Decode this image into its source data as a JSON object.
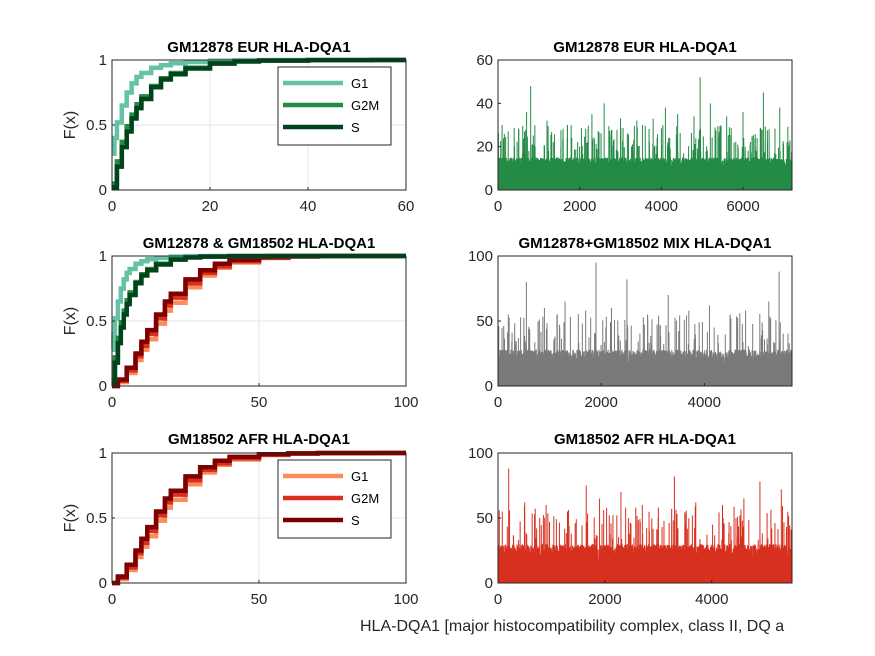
{
  "figure": {
    "footer_text": "HLA-DQA1 [major histocompatibility complex, class II, DQ a"
  },
  "chart_data": [
    {
      "id": "eur_cdf",
      "type": "line",
      "title": "GM12878 EUR HLA-DQA1",
      "xlabel": "",
      "ylabel": "F(x)",
      "xlim": [
        0,
        60
      ],
      "ylim": [
        0,
        1
      ],
      "xticks": [
        0,
        20,
        40,
        60
      ],
      "yticks": [
        0,
        0.5,
        1
      ],
      "xtick_labels": [
        "0",
        "20",
        "40",
        "60"
      ],
      "ytick_labels": [
        "0",
        "0.5",
        "1"
      ],
      "grid": true,
      "legend": "top-right",
      "series": [
        {
          "name": "G1",
          "color": "#66c2a4",
          "x": [
            0,
            0.5,
            1,
            2,
            3,
            4,
            5,
            6,
            8,
            10,
            12,
            15,
            20,
            25,
            33
          ],
          "y": [
            0.28,
            0.4,
            0.52,
            0.65,
            0.75,
            0.82,
            0.87,
            0.9,
            0.94,
            0.96,
            0.975,
            0.985,
            0.995,
            0.999,
            1.0
          ]
        },
        {
          "name": "G2M",
          "color": "#238b45",
          "x": [
            0,
            1,
            2,
            3,
            4,
            5,
            6,
            8,
            10,
            12,
            15,
            20,
            25,
            30,
            40,
            53
          ],
          "y": [
            0.05,
            0.22,
            0.37,
            0.49,
            0.58,
            0.66,
            0.72,
            0.8,
            0.86,
            0.9,
            0.94,
            0.975,
            0.99,
            0.996,
            0.999,
            1.0
          ]
        },
        {
          "name": "S",
          "color": "#00441b",
          "x": [
            0,
            1,
            2,
            3,
            4,
            5,
            6,
            8,
            10,
            12,
            15,
            20,
            25,
            30,
            40,
            53
          ],
          "y": [
            0.02,
            0.18,
            0.33,
            0.45,
            0.55,
            0.63,
            0.7,
            0.79,
            0.85,
            0.89,
            0.935,
            0.972,
            0.988,
            0.995,
            0.999,
            1.0
          ]
        }
      ]
    },
    {
      "id": "eur_bar",
      "type": "bar",
      "title": "GM12878 EUR HLA-DQA1",
      "xlim": [
        0,
        7200
      ],
      "ylim": [
        0,
        60
      ],
      "xticks": [
        0,
        2000,
        4000,
        6000
      ],
      "yticks": [
        0,
        20,
        40,
        60
      ],
      "xtick_labels": [
        "0",
        "2000",
        "4000",
        "6000"
      ],
      "ytick_labels": [
        "0",
        "20",
        "40",
        "60"
      ],
      "grid": false,
      "color": "#238b45",
      "n_points": 7200,
      "baseline_max": 15,
      "peaks": [
        {
          "x": 100,
          "y": 30
        },
        {
          "x": 250,
          "y": 27
        },
        {
          "x": 700,
          "y": 36
        },
        {
          "x": 800,
          "y": 48
        },
        {
          "x": 1200,
          "y": 32
        },
        {
          "x": 1700,
          "y": 30
        },
        {
          "x": 2300,
          "y": 35
        },
        {
          "x": 2600,
          "y": 40
        },
        {
          "x": 3000,
          "y": 33
        },
        {
          "x": 3400,
          "y": 32
        },
        {
          "x": 3800,
          "y": 33
        },
        {
          "x": 4100,
          "y": 38
        },
        {
          "x": 4400,
          "y": 35
        },
        {
          "x": 4800,
          "y": 34
        },
        {
          "x": 4950,
          "y": 52
        },
        {
          "x": 5200,
          "y": 40
        },
        {
          "x": 5600,
          "y": 34
        },
        {
          "x": 6000,
          "y": 36
        },
        {
          "x": 6500,
          "y": 45
        },
        {
          "x": 6900,
          "y": 38
        }
      ]
    },
    {
      "id": "mix_cdf",
      "type": "line",
      "title": "GM12878 & GM18502 HLA-DQA1",
      "xlabel": "",
      "ylabel": "F(x)",
      "xlim": [
        0,
        100
      ],
      "ylim": [
        0,
        1
      ],
      "xticks": [
        0,
        50,
        100
      ],
      "yticks": [
        0,
        0.5,
        1
      ],
      "xtick_labels": [
        "0",
        "50",
        "100"
      ],
      "ytick_labels": [
        "0",
        "0.5",
        "1"
      ],
      "grid": true,
      "legend": "none",
      "series": [
        {
          "name": "",
          "color": "#fc8d59",
          "x": [
            0,
            2,
            5,
            8,
            10,
            12,
            15,
            18,
            20,
            25,
            30,
            35,
            40,
            50,
            60,
            70,
            90
          ],
          "y": [
            0,
            0.03,
            0.1,
            0.2,
            0.28,
            0.36,
            0.48,
            0.58,
            0.64,
            0.76,
            0.85,
            0.91,
            0.95,
            0.985,
            0.995,
            0.999,
            1.0
          ]
        },
        {
          "name": "",
          "color": "#d7301f",
          "x": [
            0,
            2,
            5,
            8,
            10,
            12,
            15,
            18,
            20,
            25,
            30,
            35,
            40,
            50,
            60,
            70,
            90
          ],
          "y": [
            0,
            0.04,
            0.12,
            0.23,
            0.31,
            0.4,
            0.52,
            0.62,
            0.68,
            0.79,
            0.87,
            0.92,
            0.96,
            0.988,
            0.996,
            0.999,
            1.0
          ]
        },
        {
          "name": "",
          "color": "#7f0000",
          "x": [
            0,
            2,
            5,
            8,
            10,
            12,
            15,
            18,
            20,
            25,
            30,
            35,
            40,
            50,
            60,
            70
          ],
          "y": [
            0,
            0.05,
            0.14,
            0.25,
            0.34,
            0.43,
            0.55,
            0.65,
            0.71,
            0.82,
            0.89,
            0.94,
            0.97,
            0.99,
            0.997,
            1.0
          ]
        },
        {
          "name": "",
          "color": "#66c2a4",
          "x": [
            0,
            0.5,
            1,
            2,
            3,
            4,
            5,
            6,
            8,
            10,
            12,
            15,
            20,
            25,
            33
          ],
          "y": [
            0.28,
            0.4,
            0.52,
            0.65,
            0.75,
            0.82,
            0.87,
            0.9,
            0.94,
            0.96,
            0.975,
            0.985,
            0.995,
            0.999,
            1.0
          ]
        },
        {
          "name": "",
          "color": "#238b45",
          "x": [
            0,
            1,
            2,
            3,
            4,
            5,
            6,
            8,
            10,
            12,
            15,
            20,
            25,
            30,
            40,
            53
          ],
          "y": [
            0.05,
            0.22,
            0.37,
            0.49,
            0.58,
            0.66,
            0.72,
            0.8,
            0.86,
            0.9,
            0.94,
            0.975,
            0.99,
            0.996,
            0.999,
            1.0
          ]
        },
        {
          "name": "",
          "color": "#00441b",
          "x": [
            0,
            1,
            2,
            3,
            4,
            5,
            6,
            8,
            10,
            12,
            15,
            20,
            25,
            30,
            40,
            53
          ],
          "y": [
            0.02,
            0.18,
            0.33,
            0.45,
            0.55,
            0.63,
            0.7,
            0.79,
            0.85,
            0.89,
            0.935,
            0.972,
            0.988,
            0.995,
            0.999,
            1.0
          ]
        }
      ]
    },
    {
      "id": "mix_bar",
      "type": "bar",
      "title": "GM12878+GM18502 MIX HLA-DQA1",
      "xlim": [
        0,
        5700
      ],
      "ylim": [
        0,
        100
      ],
      "xticks": [
        0,
        2000,
        4000
      ],
      "yticks": [
        0,
        50,
        100
      ],
      "xtick_labels": [
        "0",
        "2000",
        "4000"
      ],
      "ytick_labels": [
        "0",
        "50",
        "100"
      ],
      "grid": false,
      "color": "#7a7a7a",
      "n_points": 5700,
      "baseline_max": 28,
      "peaks": [
        {
          "x": 200,
          "y": 55
        },
        {
          "x": 550,
          "y": 80
        },
        {
          "x": 900,
          "y": 60
        },
        {
          "x": 1300,
          "y": 65
        },
        {
          "x": 1700,
          "y": 58
        },
        {
          "x": 1900,
          "y": 95
        },
        {
          "x": 2200,
          "y": 60
        },
        {
          "x": 2500,
          "y": 82
        },
        {
          "x": 2900,
          "y": 55
        },
        {
          "x": 3300,
          "y": 70
        },
        {
          "x": 3700,
          "y": 58
        },
        {
          "x": 4100,
          "y": 62
        },
        {
          "x": 4500,
          "y": 55
        },
        {
          "x": 4800,
          "y": 58
        },
        {
          "x": 5250,
          "y": 65
        },
        {
          "x": 5450,
          "y": 88
        }
      ]
    },
    {
      "id": "afr_cdf",
      "type": "line",
      "title": "GM18502 AFR HLA-DQA1",
      "xlabel": "",
      "ylabel": "F(x)",
      "xlim": [
        0,
        100
      ],
      "ylim": [
        0,
        1
      ],
      "xticks": [
        0,
        50,
        100
      ],
      "yticks": [
        0,
        0.5,
        1
      ],
      "xtick_labels": [
        "0",
        "50",
        "100"
      ],
      "ytick_labels": [
        "0",
        "0.5",
        "1"
      ],
      "grid": true,
      "legend": "top-right",
      "series": [
        {
          "name": "G1",
          "color": "#fc8d59",
          "x": [
            0,
            2,
            5,
            8,
            10,
            12,
            15,
            18,
            20,
            25,
            30,
            35,
            40,
            50,
            60,
            70,
            90
          ],
          "y": [
            0,
            0.03,
            0.1,
            0.2,
            0.28,
            0.36,
            0.48,
            0.58,
            0.64,
            0.76,
            0.85,
            0.91,
            0.95,
            0.985,
            0.995,
            0.999,
            1.0
          ]
        },
        {
          "name": "G2M",
          "color": "#d7301f",
          "x": [
            0,
            2,
            5,
            8,
            10,
            12,
            15,
            18,
            20,
            25,
            30,
            35,
            40,
            50,
            60,
            70,
            90
          ],
          "y": [
            0,
            0.04,
            0.12,
            0.23,
            0.31,
            0.4,
            0.52,
            0.62,
            0.68,
            0.79,
            0.87,
            0.92,
            0.96,
            0.988,
            0.996,
            0.999,
            1.0
          ]
        },
        {
          "name": "S",
          "color": "#7f0000",
          "x": [
            0,
            2,
            5,
            8,
            10,
            12,
            15,
            18,
            20,
            25,
            30,
            35,
            40,
            50,
            60,
            70
          ],
          "y": [
            0,
            0.05,
            0.14,
            0.25,
            0.34,
            0.43,
            0.55,
            0.65,
            0.71,
            0.82,
            0.89,
            0.94,
            0.97,
            0.99,
            0.997,
            1.0
          ]
        }
      ]
    },
    {
      "id": "afr_bar",
      "type": "bar",
      "title": "GM18502 AFR HLA-DQA1",
      "xlim": [
        0,
        5500
      ],
      "ylim": [
        0,
        100
      ],
      "xticks": [
        0,
        2000,
        4000
      ],
      "yticks": [
        0,
        50,
        100
      ],
      "xtick_labels": [
        "0",
        "2000",
        "4000"
      ],
      "ytick_labels": [
        "0",
        "50",
        "100"
      ],
      "grid": false,
      "color": "#d7301f",
      "n_points": 5500,
      "baseline_max": 30,
      "peaks": [
        {
          "x": 80,
          "y": 55
        },
        {
          "x": 200,
          "y": 88
        },
        {
          "x": 500,
          "y": 62
        },
        {
          "x": 900,
          "y": 60
        },
        {
          "x": 1300,
          "y": 55
        },
        {
          "x": 1650,
          "y": 75
        },
        {
          "x": 1900,
          "y": 65
        },
        {
          "x": 2300,
          "y": 70
        },
        {
          "x": 2700,
          "y": 60
        },
        {
          "x": 3000,
          "y": 58
        },
        {
          "x": 3300,
          "y": 82
        },
        {
          "x": 3700,
          "y": 62
        },
        {
          "x": 4200,
          "y": 60
        },
        {
          "x": 4600,
          "y": 65
        },
        {
          "x": 4900,
          "y": 78
        },
        {
          "x": 5300,
          "y": 72
        }
      ]
    }
  ]
}
